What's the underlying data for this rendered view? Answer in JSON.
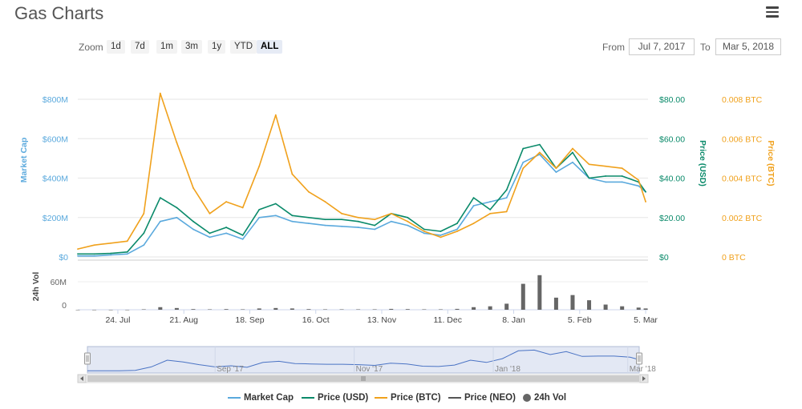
{
  "header": {
    "title": "Gas Charts",
    "menu_icon": "hamburger-menu-icon"
  },
  "zoom": {
    "label": "Zoom",
    "buttons": [
      "1d",
      "7d",
      "1m",
      "3m",
      "1y",
      "YTD",
      "ALL"
    ],
    "active": "ALL"
  },
  "range": {
    "from_label": "From",
    "from_value": "Jul 7, 2017",
    "to_label": "To",
    "to_value": "Mar 5, 2018"
  },
  "colors": {
    "market_cap": "#5aa9dd",
    "price_usd": "#0a8a6a",
    "price_btc": "#f0a11c",
    "price_neo": "#555555",
    "volume": "#666666",
    "navigator_fill": "#ccd6eb",
    "navigator_line": "#4a73c4"
  },
  "chart_data": {
    "type": "line",
    "x_ticks": [
      "24. Jul",
      "21. Aug",
      "18. Sep",
      "16. Oct",
      "13. Nov",
      "11. Dec",
      "8. Jan",
      "5. Feb",
      "5. Mar"
    ],
    "x": [
      "2017-07-07",
      "2017-07-14",
      "2017-07-21",
      "2017-07-28",
      "2017-08-04",
      "2017-08-11",
      "2017-08-18",
      "2017-08-25",
      "2017-09-01",
      "2017-09-08",
      "2017-09-15",
      "2017-09-22",
      "2017-09-29",
      "2017-10-06",
      "2017-10-13",
      "2017-10-20",
      "2017-10-27",
      "2017-11-03",
      "2017-11-10",
      "2017-11-17",
      "2017-11-24",
      "2017-12-01",
      "2017-12-08",
      "2017-12-15",
      "2017-12-22",
      "2017-12-29",
      "2018-01-05",
      "2018-01-12",
      "2018-01-19",
      "2018-01-26",
      "2018-02-02",
      "2018-02-09",
      "2018-02-16",
      "2018-02-23",
      "2018-03-02",
      "2018-03-05"
    ],
    "y_axes": {
      "market_cap": {
        "label": "Market Cap",
        "ticks": [
          "$0",
          "$200M",
          "$400M",
          "$600M",
          "$800M"
        ],
        "range": [
          0,
          800000000
        ]
      },
      "price_usd": {
        "label": "Price (USD)",
        "ticks": [
          "$0",
          "$20.00",
          "$40.00",
          "$60.00",
          "$80.00"
        ],
        "range": [
          0,
          80
        ]
      },
      "price_btc": {
        "label": "Price (BTC)",
        "ticks": [
          "0 BTC",
          "0.002 BTC",
          "0.004 BTC",
          "0.006 BTC",
          "0.008 BTC"
        ],
        "range": [
          0,
          0.008
        ]
      },
      "volume": {
        "label": "24h Vol",
        "ticks": [
          "0",
          "60M"
        ],
        "range": [
          0,
          100000000
        ]
      }
    },
    "series": [
      {
        "name": "Market Cap",
        "axis": "market_cap",
        "values": [
          5000000,
          5000000,
          10000000,
          15000000,
          60000000,
          180000000,
          200000000,
          140000000,
          100000000,
          120000000,
          90000000,
          200000000,
          210000000,
          180000000,
          170000000,
          160000000,
          155000000,
          150000000,
          140000000,
          180000000,
          160000000,
          120000000,
          110000000,
          140000000,
          260000000,
          280000000,
          300000000,
          480000000,
          520000000,
          430000000,
          480000000,
          400000000,
          380000000,
          380000000,
          360000000,
          330000000
        ]
      },
      {
        "name": "Price (USD)",
        "axis": "price_usd",
        "values": [
          1.5,
          1.5,
          1.8,
          2.5,
          12,
          30,
          25,
          18,
          12,
          15,
          11,
          24,
          27,
          21,
          20,
          19,
          19,
          18,
          16,
          22,
          20,
          14,
          13,
          17,
          30,
          24,
          34,
          55,
          57,
          45,
          53,
          40,
          41,
          41,
          38,
          33
        ]
      },
      {
        "name": "Price (BTC)",
        "axis": "price_btc",
        "values": [
          0.0004,
          0.0006,
          0.0007,
          0.0008,
          0.0022,
          0.0083,
          0.0058,
          0.0035,
          0.0022,
          0.0028,
          0.0025,
          0.0046,
          0.0072,
          0.0042,
          0.0033,
          0.0028,
          0.0022,
          0.002,
          0.0019,
          0.0022,
          0.0018,
          0.0013,
          0.001,
          0.0013,
          0.0017,
          0.0022,
          0.0023,
          0.0045,
          0.0053,
          0.0045,
          0.0055,
          0.0047,
          0.0046,
          0.0045,
          0.0039,
          0.0028
        ]
      }
    ],
    "volume": {
      "name": "24h Vol",
      "values": [
        0,
        0,
        0,
        0,
        1000000,
        6000000,
        4000000,
        1500000,
        1000000,
        1500000,
        1000000,
        3000000,
        4000000,
        3000000,
        1500000,
        1000000,
        1000000,
        1000000,
        1000000,
        2000000,
        1500000,
        1000000,
        1000000,
        2000000,
        6000000,
        8000000,
        14000000,
        60000000,
        80000000,
        28000000,
        34000000,
        22000000,
        12000000,
        8000000,
        5000000,
        3000000
      ]
    },
    "navigator_ticks": [
      "Sep '17",
      "Nov '17",
      "Jan '18",
      "Mar '18"
    ],
    "legend": [
      {
        "name": "Market Cap",
        "kind": "line"
      },
      {
        "name": "Price (USD)",
        "kind": "line"
      },
      {
        "name": "Price (BTC)",
        "kind": "line"
      },
      {
        "name": "Price (NEO)",
        "kind": "line"
      },
      {
        "name": "24h Vol",
        "kind": "dot"
      }
    ],
    "legend_position": "bottom-center"
  }
}
